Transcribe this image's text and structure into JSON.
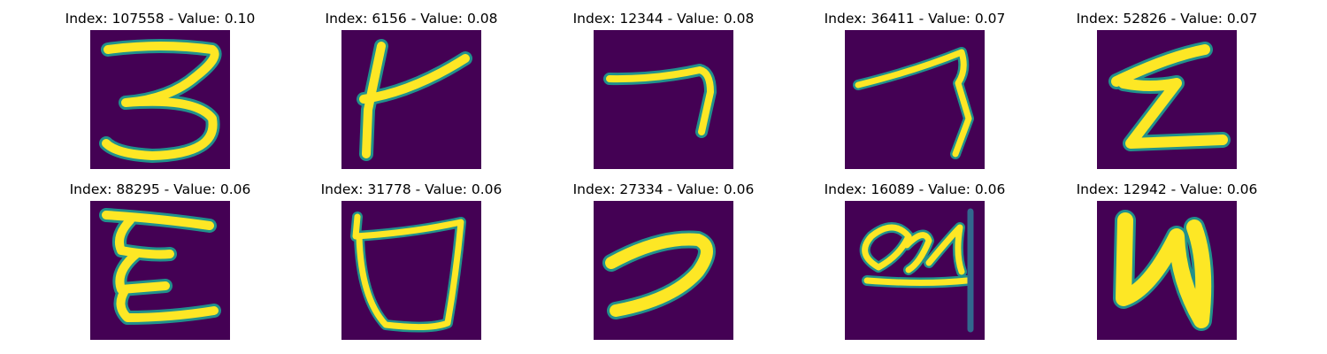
{
  "figure": {
    "background": "#ffffff",
    "colormap": {
      "low": "#440154",
      "mid": "#21918c",
      "high": "#fde725"
    }
  },
  "panels": [
    {
      "title": "Index: 107558 - Value: 0.10",
      "glyph": "handwritten-3"
    },
    {
      "title": "Index: 6156 - Value: 0.08",
      "glyph": "handwritten-cross-stroke"
    },
    {
      "title": "Index: 12344 - Value: 0.08",
      "glyph": "handwritten-7-like"
    },
    {
      "title": "Index: 36411 - Value: 0.07",
      "glyph": "handwritten-7-slanted"
    },
    {
      "title": "Index: 52826 - Value: 0.07",
      "glyph": "handwritten-Z-like"
    },
    {
      "title": "Index: 88295 - Value: 0.06",
      "glyph": "handwritten-E"
    },
    {
      "title": "Index: 31778 - Value: 0.06",
      "glyph": "handwritten-U-with-bar"
    },
    {
      "title": "Index: 27334 - Value: 0.06",
      "glyph": "handwritten-reverse-s"
    },
    {
      "title": "Index: 16089 - Value: 0.06",
      "glyph": "handwritten-scribble"
    },
    {
      "title": "Index: 12942 - Value: 0.06",
      "glyph": "handwritten-N-like"
    }
  ]
}
